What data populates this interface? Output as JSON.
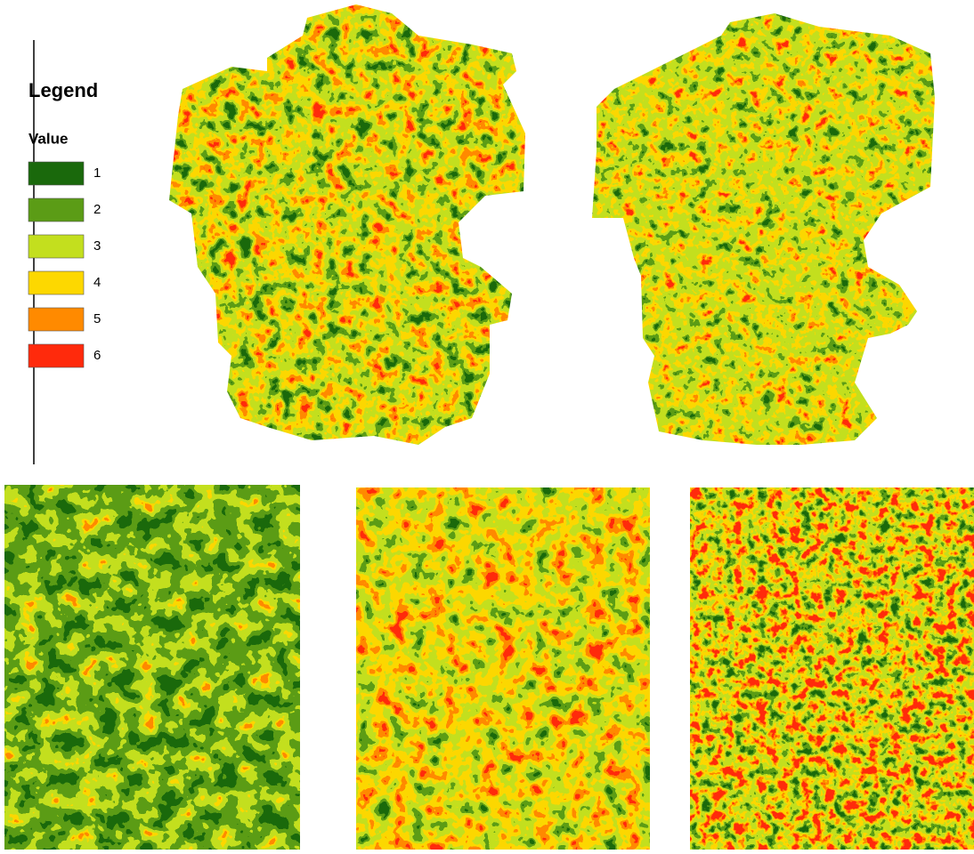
{
  "legend": {
    "title": "Legend",
    "field": "Value",
    "items": [
      {
        "value": 1,
        "color": "#1a690c"
      },
      {
        "value": 2,
        "color": "#5b9c16"
      },
      {
        "value": 3,
        "color": "#c3df1e"
      },
      {
        "value": 4,
        "color": "#fdd800"
      },
      {
        "value": 5,
        "color": "#ff8a00"
      },
      {
        "value": 6,
        "color": "#ff2a0c"
      }
    ]
  }
}
